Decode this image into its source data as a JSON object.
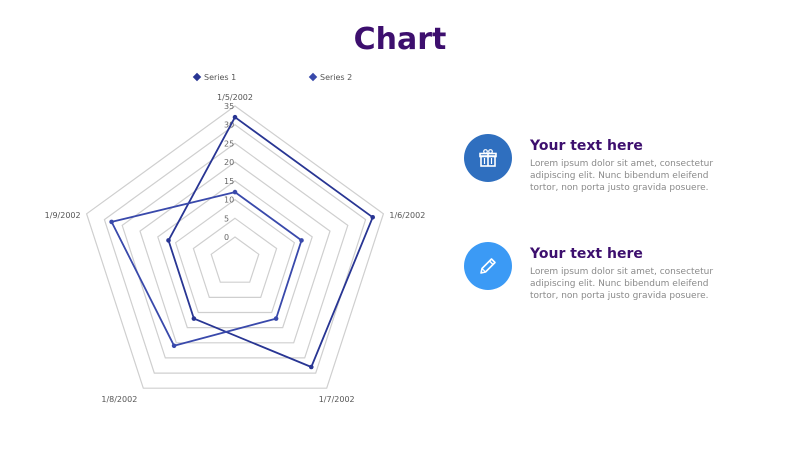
{
  "title": "Chart",
  "colors": {
    "title": "#3d0f6e",
    "series1": "#283593",
    "series2": "#3949ab",
    "grid": "#cfcfcf",
    "circle1": "#2f6fbf",
    "circle2": "#3b9af5",
    "info_title": "#3d0f6e"
  },
  "chart_data": {
    "type": "radar",
    "categories": [
      "1/5/2002",
      "1/6/2002",
      "1/7/2002",
      "1/8/2002",
      "1/9/2002"
    ],
    "series": [
      {
        "name": "Series 1",
        "values": [
          32,
          32,
          28,
          12,
          12
        ]
      },
      {
        "name": "Series 2",
        "values": [
          12,
          12,
          12,
          21,
          28
        ]
      }
    ],
    "rlim": [
      0,
      35
    ],
    "ticks": [
      "0",
      "5",
      "10",
      "15",
      "20",
      "25",
      "30",
      "35"
    ],
    "grid": true,
    "legend": "top"
  },
  "info_items": [
    {
      "icon": "gift-icon",
      "title": "Your text here",
      "body": "Lorem ipsum dolor sit amet, consectetur adipiscing elit. Nunc bibendum eleifend tortor, non porta justo gravida posuere."
    },
    {
      "icon": "pencil-icon",
      "title": "Your text here",
      "body": "Lorem ipsum dolor sit amet, consectetur adipiscing elit. Nunc bibendum eleifend tortor, non porta justo gravida posuere."
    }
  ]
}
